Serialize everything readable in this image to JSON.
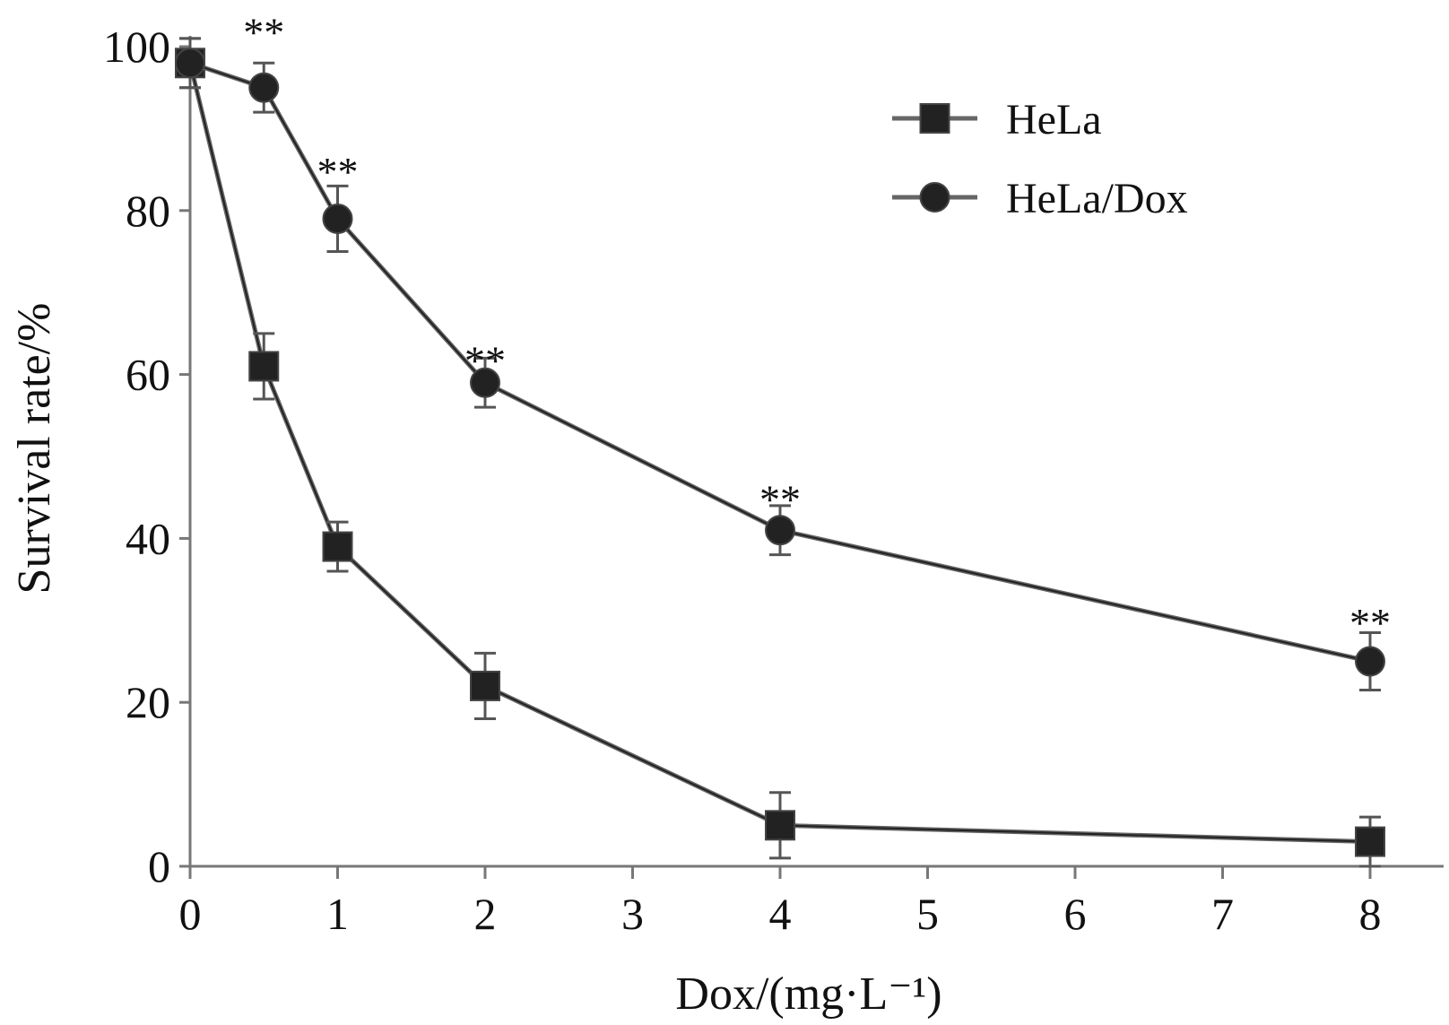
{
  "chart_data": {
    "type": "line",
    "xlabel": "Dox/(mg·L⁻¹)",
    "ylabel": "Survival rate/%",
    "ylim": [
      0,
      100
    ],
    "yticks": [
      0,
      20,
      40,
      60,
      80,
      100
    ],
    "xticks": [
      {
        "label": "0",
        "pos": 0
      },
      {
        "label": "1",
        "pos": 1
      },
      {
        "label": "2",
        "pos": 2
      },
      {
        "label": "3",
        "pos": 3
      },
      {
        "label": "4",
        "pos": 4
      },
      {
        "label": "5",
        "pos": 5
      },
      {
        "label": "6",
        "pos": 6
      },
      {
        "label": "7",
        "pos": 7
      },
      {
        "label": "8",
        "pos": 8
      }
    ],
    "xlim": [
      0,
      8.5
    ],
    "legend_position": "top-right",
    "grid": false,
    "series": [
      {
        "name": "HeLa",
        "marker": "square",
        "x": [
          0,
          0.5,
          1,
          2,
          4,
          8
        ],
        "y": [
          98,
          61,
          39,
          22,
          5,
          3
        ],
        "err": [
          3,
          4,
          3,
          4,
          4,
          3
        ]
      },
      {
        "name": "HeLa/Dox",
        "marker": "circle",
        "x": [
          0,
          0.5,
          1,
          2,
          4,
          8
        ],
        "y": [
          98,
          95,
          79,
          59,
          41,
          25
        ],
        "err": [
          3,
          3,
          4,
          3,
          3,
          3.5
        ]
      }
    ],
    "annotations": [
      {
        "text": "**",
        "x": 0.5,
        "y": 102
      },
      {
        "text": "**",
        "x": 1,
        "y": 85
      },
      {
        "text": "**",
        "x": 2,
        "y": 62
      },
      {
        "text": "**",
        "x": 4,
        "y": 45
      },
      {
        "text": "**",
        "x": 8,
        "y": 30
      }
    ]
  }
}
